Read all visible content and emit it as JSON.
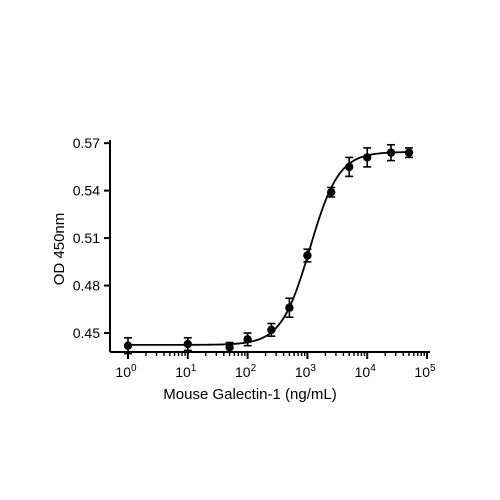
{
  "chart_data": {
    "type": "scatter",
    "title": "",
    "xlabel": "Mouse Galectin-1 (ng/mL)",
    "ylabel": "OD 450nm",
    "xscale": "log",
    "xlim": [
      1,
      100000
    ],
    "ylim": [
      0.438,
      0.572
    ],
    "xticks": [
      {
        "value": 1,
        "base": "10",
        "exp": "0"
      },
      {
        "value": 10,
        "base": "10",
        "exp": "1"
      },
      {
        "value": 100,
        "base": "10",
        "exp": "2"
      },
      {
        "value": 1000,
        "base": "10",
        "exp": "3"
      },
      {
        "value": 10000,
        "base": "10",
        "exp": "4"
      },
      {
        "value": 100000,
        "base": "10",
        "exp": "5"
      }
    ],
    "yticks": [
      {
        "value": 0.45,
        "label": "0.45"
      },
      {
        "value": 0.48,
        "label": "0.48"
      },
      {
        "value": 0.51,
        "label": "0.51"
      },
      {
        "value": 0.54,
        "label": "0.54"
      },
      {
        "value": 0.57,
        "label": "0.57"
      }
    ],
    "grid": false,
    "legend": "none",
    "marker_color": "#000000",
    "points": [
      {
        "x": 1,
        "y": 0.442,
        "err": 0.005
      },
      {
        "x": 10,
        "y": 0.443,
        "err": 0.004
      },
      {
        "x": 50,
        "y": 0.441,
        "err": 0.003
      },
      {
        "x": 100,
        "y": 0.446,
        "err": 0.004
      },
      {
        "x": 250,
        "y": 0.452,
        "err": 0.004
      },
      {
        "x": 500,
        "y": 0.466,
        "err": 0.006
      },
      {
        "x": 1000,
        "y": 0.499,
        "err": 0.004
      },
      {
        "x": 2500,
        "y": 0.539,
        "err": 0.003
      },
      {
        "x": 5000,
        "y": 0.555,
        "err": 0.006
      },
      {
        "x": 10000,
        "y": 0.561,
        "err": 0.006
      },
      {
        "x": 25000,
        "y": 0.564,
        "err": 0.005
      },
      {
        "x": 50000,
        "y": 0.564,
        "err": 0.003
      }
    ],
    "fit": {
      "model": "4PL",
      "bottom": 0.4425,
      "top": 0.5645,
      "ec50": 1100,
      "hill": 1.8
    }
  }
}
